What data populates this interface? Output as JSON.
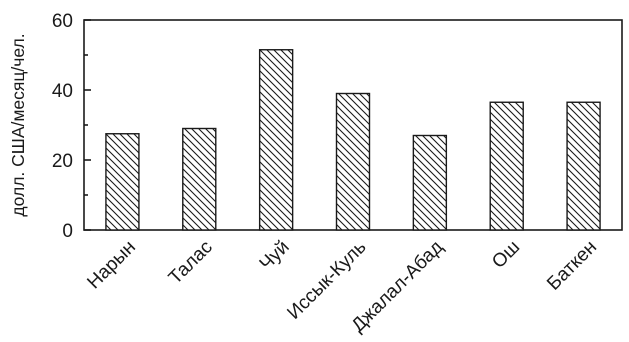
{
  "chart_data": {
    "type": "bar",
    "title": "",
    "xlabel": "",
    "ylabel": "долл. США/месяц/чел.",
    "ylim": [
      0,
      60
    ],
    "yticks": [
      0,
      20,
      40,
      60
    ],
    "grid": false,
    "bar_fill": "diagonal-hatch",
    "colors": {
      "bar_stroke": "#1a1a1a",
      "hatch": "#1a1a1a",
      "axis": "#1a1a1a",
      "background": "#ffffff"
    },
    "categories": [
      "Нарын",
      "Талас",
      "Чуй",
      "Иссык-Куль",
      "Джалал-Абад",
      "Ош",
      "Баткен"
    ],
    "values": [
      27.5,
      29,
      51.5,
      39,
      27,
      36.5,
      36.5
    ]
  }
}
